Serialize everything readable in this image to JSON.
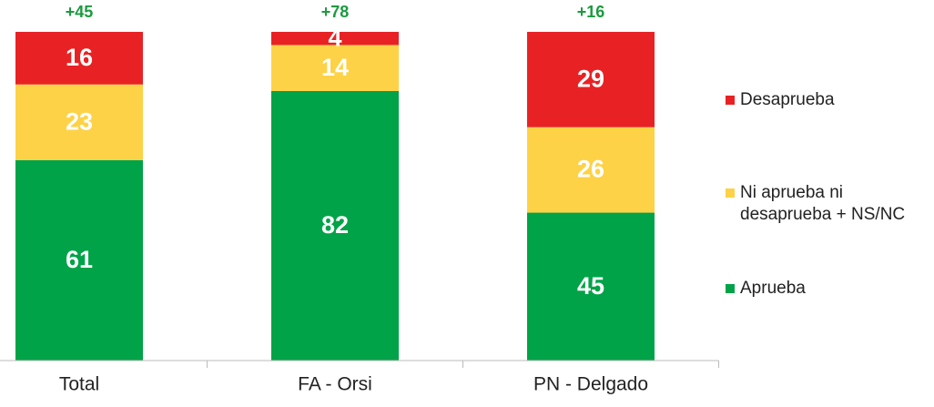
{
  "chart_data": {
    "type": "stacked-bar",
    "categories": [
      "Total",
      "FA - Orsi",
      "PN - Delgado"
    ],
    "series": [
      {
        "name": "Aprueba",
        "color": "#00a347",
        "values": [
          61,
          82,
          45
        ]
      },
      {
        "name": "Ni aprueba ni desaprueba + NS/NC",
        "color": "#fdd247",
        "values": [
          23,
          14,
          26
        ]
      },
      {
        "name": "Desaprueba",
        "color": "#e82224",
        "values": [
          16,
          4,
          29
        ]
      }
    ],
    "annotations": [
      "+45",
      "+78",
      "+16"
    ],
    "annotation_color": "#1c9a3f",
    "ylim": [
      0,
      100
    ]
  }
}
